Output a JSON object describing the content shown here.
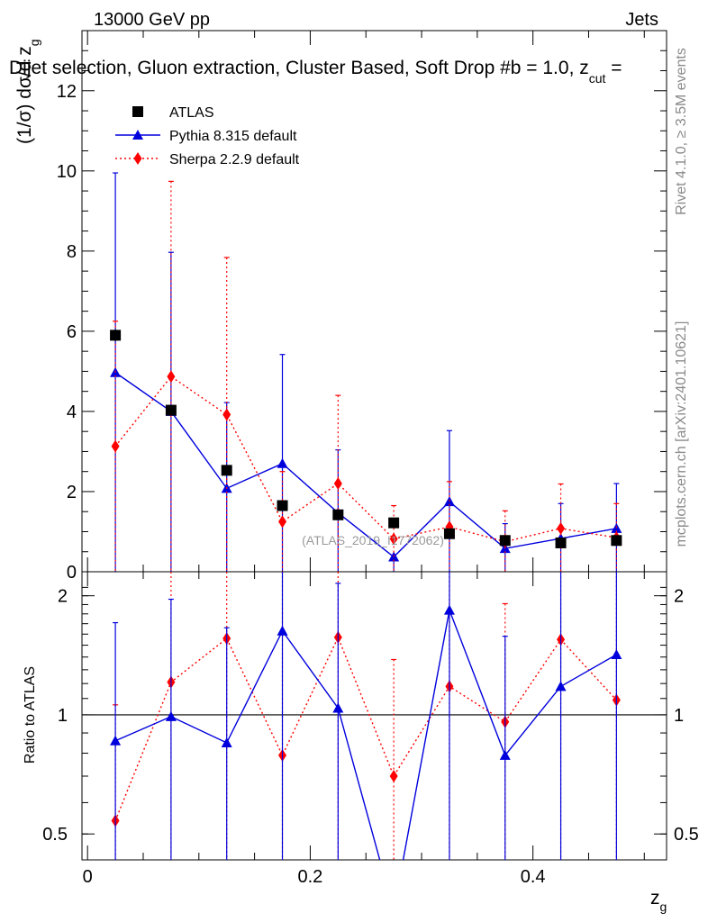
{
  "header": {
    "energy": "13000 GeV pp",
    "category": "Jets",
    "title": "Dijet selection, Gluon extraction, Cluster Based, Soft Drop #b = 1.0, z",
    "title_sub": "cut",
    "title_tail": " ="
  },
  "side_labels": {
    "rivet": "Rivet 4.1.0, ≥ 3.5M events",
    "mcplots": "mcplots.cern.ch [arXiv:2401.10621]"
  },
  "watermark": "(ATLAS_2019_I1772062)",
  "colors": {
    "atlas": "#000000",
    "pythia": "#0000dd",
    "sherpa": "#ff0000"
  },
  "chart_data": [
    {
      "type": "scatter",
      "panel": "main",
      "ylabel": "(1/σ) dσ/d z",
      "ylabel_sub": "g",
      "ylim": [
        0,
        13.5
      ],
      "yticks": [
        0,
        2,
        4,
        6,
        8,
        10,
        12
      ],
      "ytick_labels": [
        "0",
        "2",
        "4",
        "6",
        "8",
        "10",
        "12"
      ],
      "x": [
        0.025,
        0.075,
        0.125,
        0.175,
        0.225,
        0.275,
        0.325,
        0.375,
        0.425,
        0.475
      ],
      "series": [
        {
          "name": "ATLAS",
          "marker": "square",
          "line": "none",
          "values": [
            5.9,
            4.03,
            2.53,
            1.65,
            1.42,
            1.22,
            0.95,
            0.78,
            0.72,
            0.78
          ],
          "err_lo": [
            0.15,
            0.12,
            0.1,
            0.08,
            0.08,
            0.07,
            0.06,
            0.05,
            0.05,
            0.05
          ],
          "err_hi": [
            0.15,
            0.12,
            0.1,
            0.08,
            0.08,
            0.07,
            0.06,
            0.05,
            0.05,
            0.05
          ]
        },
        {
          "name": "Pythia 8.315 default",
          "marker": "triangle",
          "line": "solid",
          "values": [
            4.97,
            4.0,
            2.08,
            2.7,
            1.47,
            0.37,
            1.75,
            0.58,
            0.83,
            1.08
          ],
          "err_lo": [
            4.97,
            4.0,
            2.08,
            2.7,
            1.47,
            0.37,
            1.75,
            0.58,
            0.83,
            1.08
          ],
          "err_hi": [
            4.98,
            3.97,
            2.14,
            2.72,
            1.57,
            0.0,
            1.77,
            0.62,
            0.87,
            1.12
          ]
        },
        {
          "name": "Sherpa 2.2.9 default",
          "marker": "diamond",
          "line": "dotted",
          "values": [
            3.13,
            4.87,
            3.92,
            1.25,
            2.2,
            0.82,
            1.12,
            0.75,
            1.08,
            0.85
          ],
          "err_lo": [
            3.13,
            4.87,
            3.92,
            1.25,
            2.2,
            0.82,
            1.12,
            0.75,
            1.08,
            0.85
          ],
          "err_hi": [
            3.12,
            4.87,
            3.92,
            1.25,
            2.2,
            0.83,
            1.13,
            0.77,
            1.11,
            0.85
          ]
        }
      ]
    },
    {
      "type": "line",
      "panel": "ratio",
      "ylabel": "Ratio to ATLAS",
      "xlabel": "z",
      "xlabel_sub": "g",
      "xlim": [
        -0.005,
        0.52
      ],
      "ylim": [
        0.43,
        2.3
      ],
      "yticks": [
        0.5,
        1,
        2
      ],
      "ytick_labels": [
        "0.5",
        "1",
        "2"
      ],
      "xticks": [
        0,
        0.2,
        0.4
      ],
      "xtick_labels": [
        "0",
        "0.2",
        "0.4"
      ],
      "x": [
        0.025,
        0.075,
        0.125,
        0.175,
        0.225,
        0.275,
        0.325,
        0.375,
        0.425,
        0.475
      ],
      "reference": 1,
      "series": [
        {
          "name": "Pythia 8.315 default",
          "values": [
            0.86,
            0.99,
            0.85,
            1.63,
            1.04,
            0.32,
            1.84,
            0.79,
            1.18,
            1.42
          ],
          "err_hi": [
            1.71,
            1.96,
            1.66,
            2.3,
            2.15,
            0.32,
            2.3,
            1.58,
            2.3,
            2.3
          ]
        },
        {
          "name": "Sherpa 2.2.9 default",
          "values": [
            0.54,
            1.21,
            1.56,
            0.79,
            1.57,
            0.7,
            1.18,
            0.96,
            1.55,
            1.09
          ],
          "err_hi": [
            1.06,
            2.3,
            2.3,
            2.3,
            2.3,
            1.38,
            2.3,
            1.91,
            2.3,
            2.3
          ]
        }
      ]
    }
  ]
}
